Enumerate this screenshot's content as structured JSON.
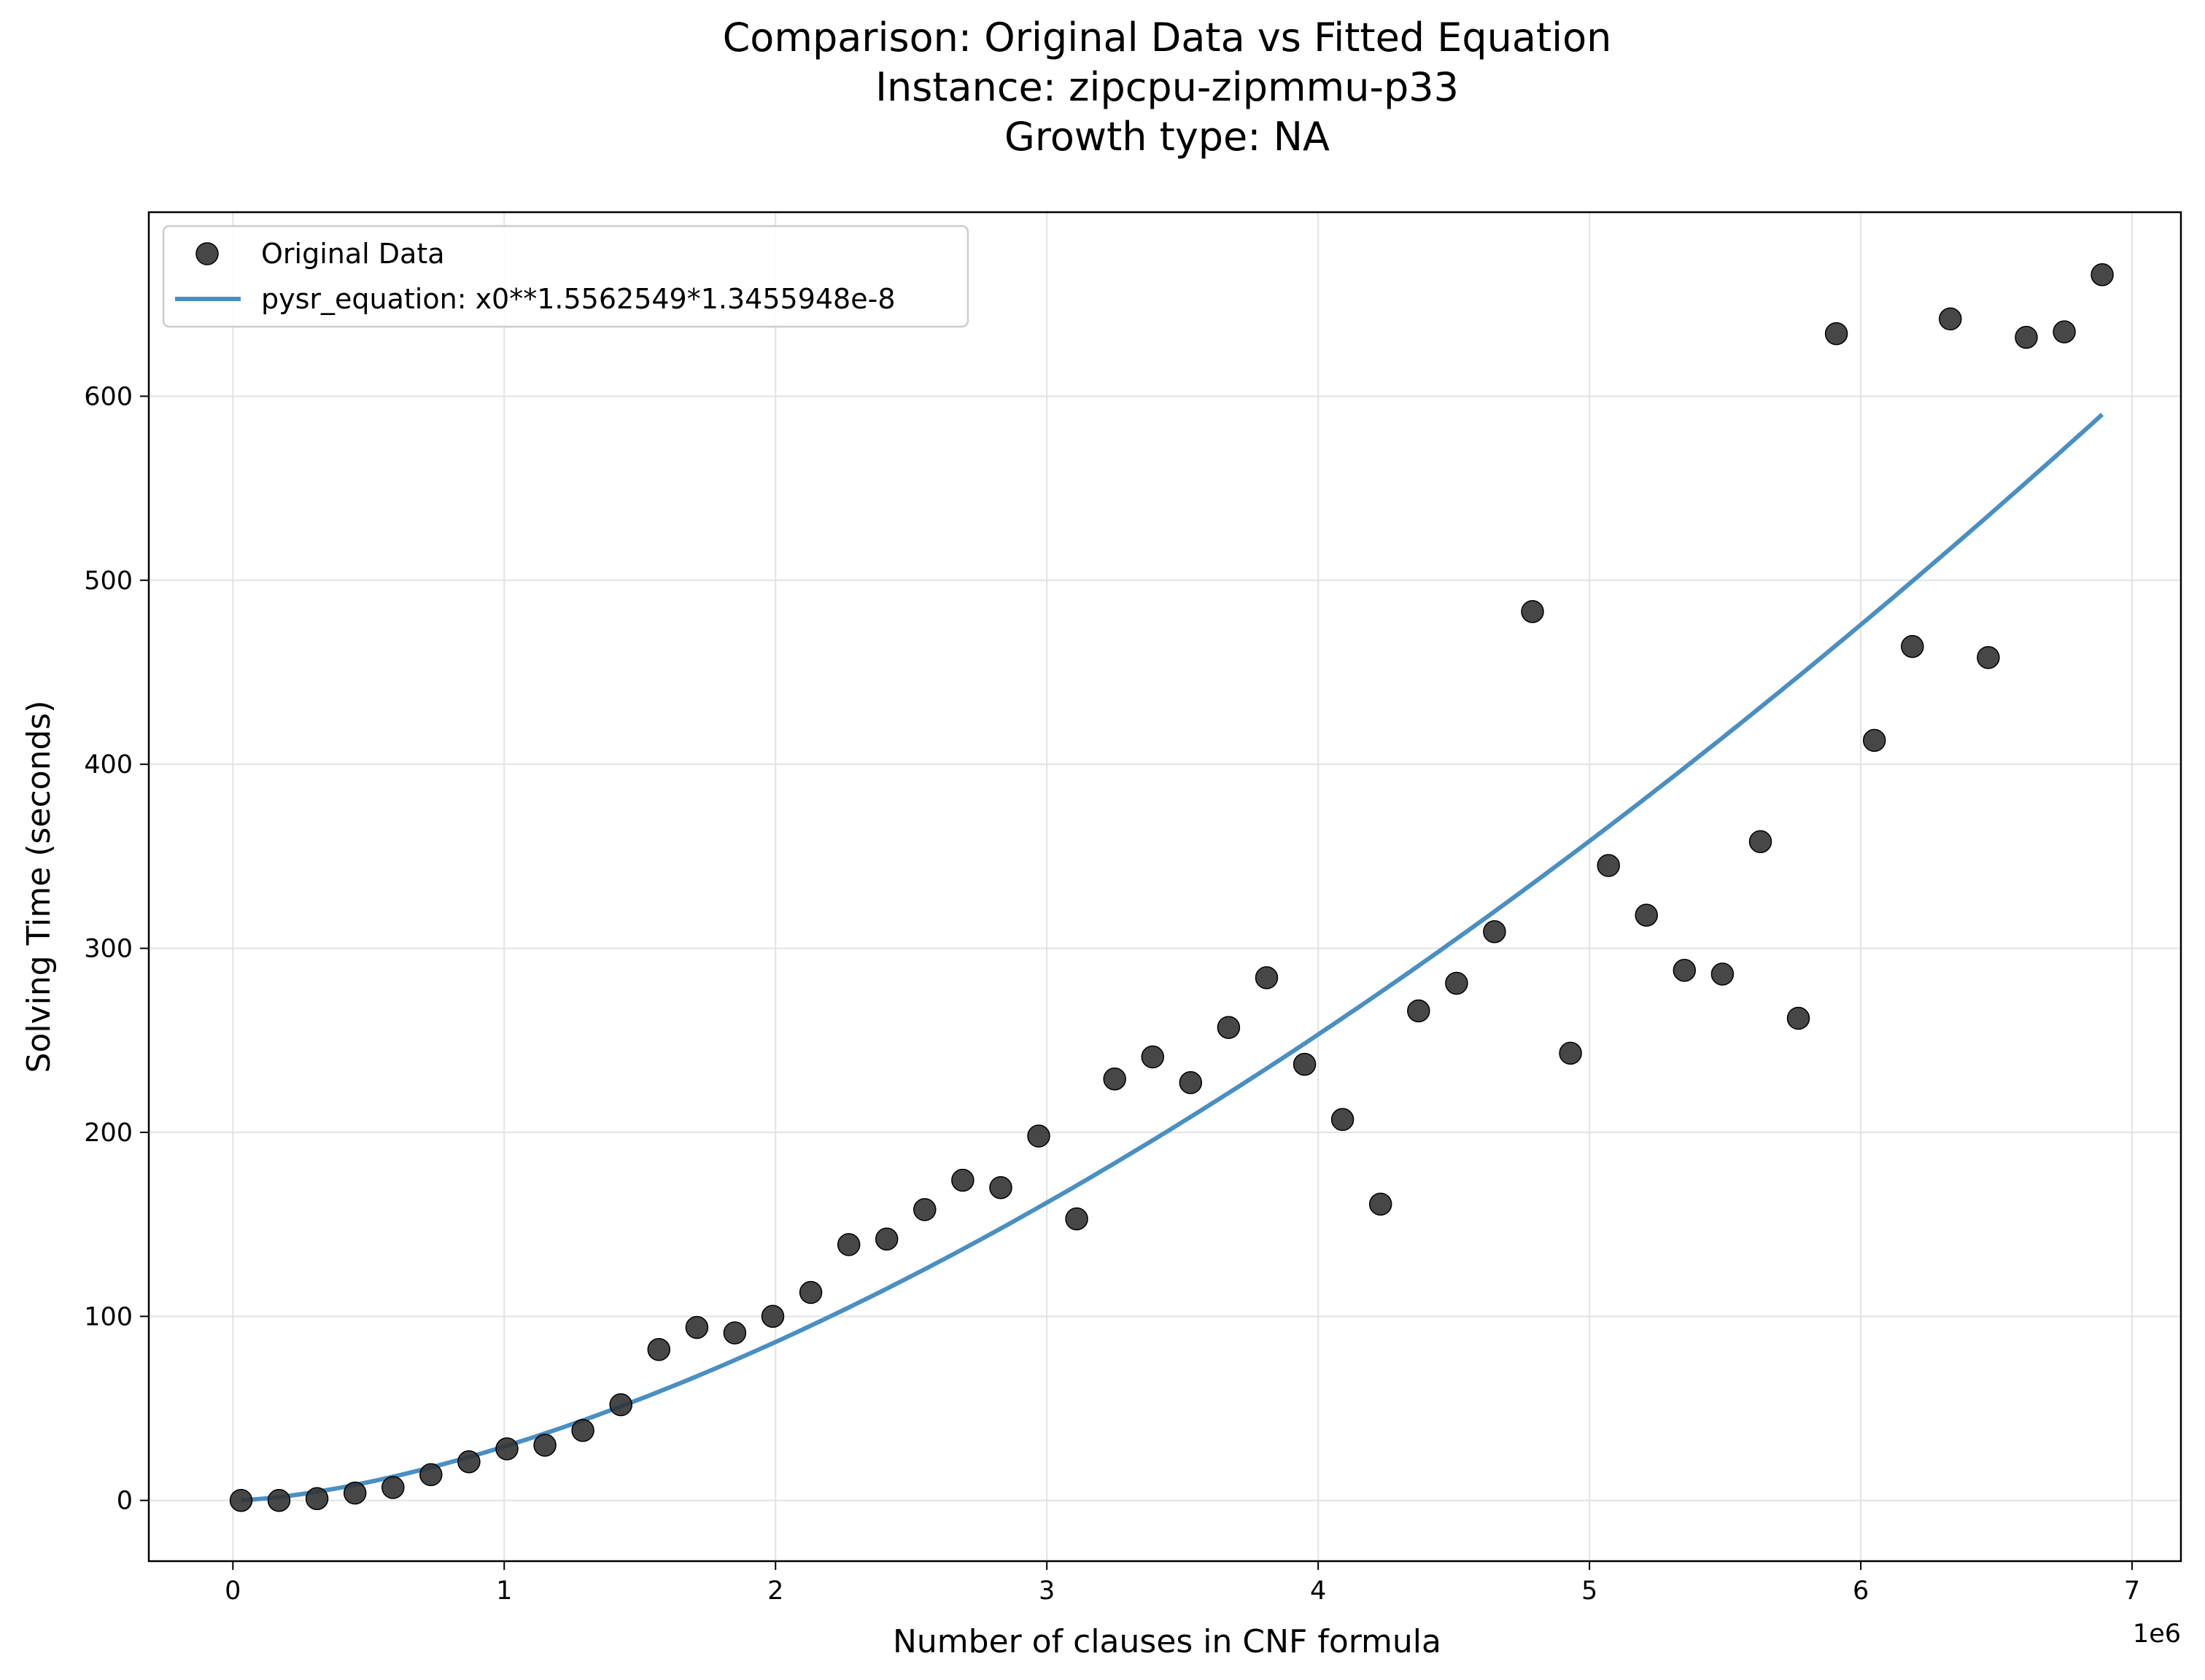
{
  "chart_data": {
    "type": "scatter",
    "title": [
      "Comparison: Original Data vs Fitted Equation",
      "Instance: zipcpu-zipmmu-p33",
      "Growth type: NA"
    ],
    "xlabel": "Number of clauses in CNF formula",
    "ylabel": "Solving Time (seconds)",
    "x_offset_label": "1e6",
    "xlim": [
      -310000,
      7180000
    ],
    "ylim": [
      -33,
      700
    ],
    "x_ticks": [
      0,
      1,
      2,
      3,
      4,
      5,
      6,
      7
    ],
    "y_ticks": [
      0,
      100,
      200,
      300,
      400,
      500,
      600
    ],
    "grid": true,
    "legend_position": "upper-left",
    "series": [
      {
        "name": "Original Data",
        "kind": "scatter",
        "color": "#333333",
        "x": [
          30000,
          170000,
          310000,
          450000,
          590000,
          730000,
          870000,
          1010000,
          1150000,
          1290000,
          1430000,
          1570000,
          1710000,
          1850000,
          1990000,
          2130000,
          2270000,
          2410000,
          2550000,
          2690000,
          2830000,
          2970000,
          3110000,
          3250000,
          3390000,
          3530000,
          3670000,
          3810000,
          3950000,
          4090000,
          4230000,
          4370000,
          4510000,
          4650000,
          4790000,
          4930000,
          5070000,
          5210000,
          5350000,
          5490000,
          5630000,
          5770000,
          5910000,
          6050000,
          6190000,
          6330000,
          6470000,
          6610000,
          6750000,
          6890000
        ],
        "y": [
          0,
          0,
          1,
          4,
          7,
          14,
          21,
          28,
          30,
          38,
          52,
          82,
          94,
          91,
          100,
          113,
          139,
          142,
          158,
          174,
          170,
          198,
          153,
          229,
          241,
          227,
          257,
          284,
          237,
          207,
          161,
          266,
          281,
          309,
          483,
          243,
          345,
          318,
          288,
          286,
          358,
          262,
          634,
          413,
          464,
          642,
          458,
          632,
          635,
          666
        ]
      },
      {
        "name": "pysr_equation: x0**1.5562549*1.3455948e-8",
        "kind": "line",
        "color": "#4a8fc2",
        "exponent": 1.5562549,
        "coefficient": 1.3455948e-08,
        "x_range": [
          30000,
          6890000
        ]
      }
    ]
  }
}
